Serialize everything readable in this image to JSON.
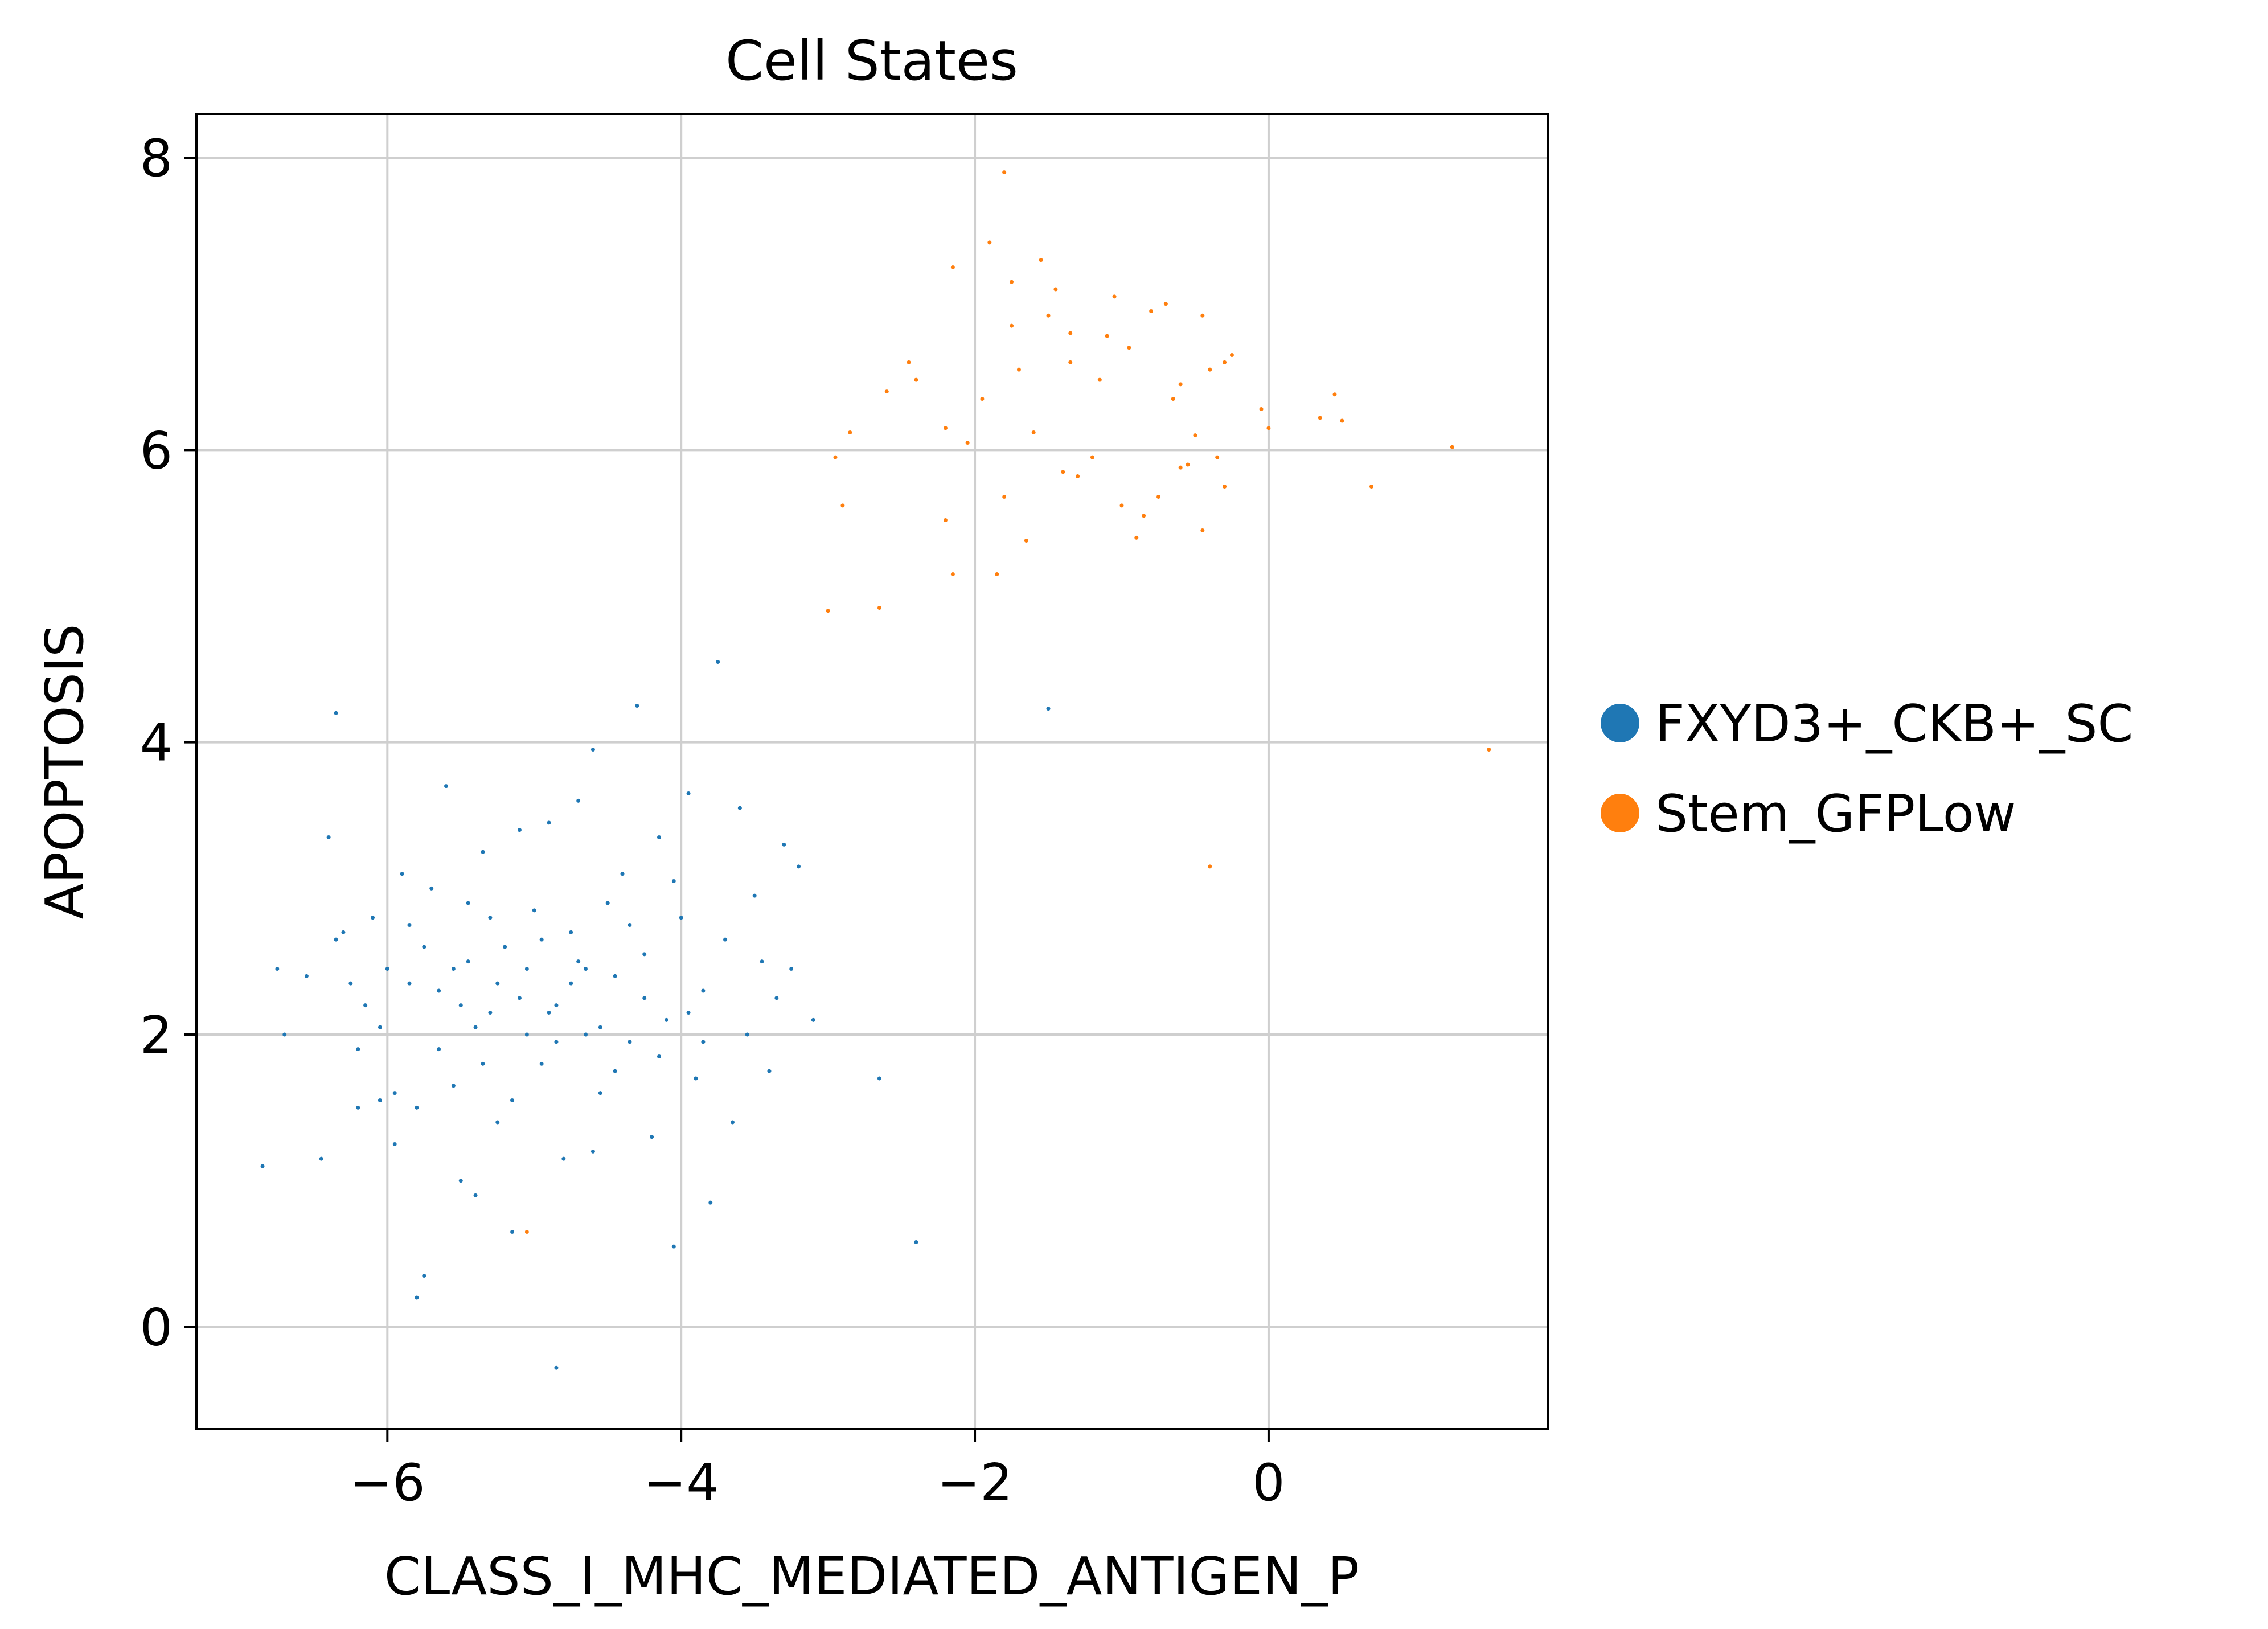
{
  "chart_data": {
    "type": "scatter",
    "title": "Cell States",
    "xlabel": "CLASS_I_MHC_MEDIATED_ANTIGEN_P",
    "ylabel": "APOPTOSIS",
    "xlim": [
      -7.3,
      1.9
    ],
    "ylim": [
      -0.7,
      8.3
    ],
    "xticks": [
      -6,
      -4,
      -2,
      0
    ],
    "xtick_labels": [
      "−6",
      "−4",
      "−2",
      "0"
    ],
    "yticks": [
      0,
      2,
      4,
      6,
      8
    ],
    "ytick_labels": [
      "0",
      "2",
      "4",
      "6",
      "8"
    ],
    "grid": true,
    "legend_position": "right",
    "series": [
      {
        "name": "FXYD3+_CKB+_SC",
        "color": "#1f77b4",
        "points": [
          [
            -6.85,
            1.1
          ],
          [
            -6.75,
            2.45
          ],
          [
            -6.7,
            2.0
          ],
          [
            -6.35,
            4.2
          ],
          [
            -6.4,
            3.35
          ],
          [
            -6.3,
            2.7
          ],
          [
            -6.25,
            2.35
          ],
          [
            -6.2,
            1.5
          ],
          [
            -6.15,
            2.2
          ],
          [
            -6.1,
            2.8
          ],
          [
            -6.05,
            1.55
          ],
          [
            -6.0,
            2.45
          ],
          [
            -5.95,
            1.6
          ],
          [
            -5.9,
            3.1
          ],
          [
            -5.85,
            2.75
          ],
          [
            -5.8,
            1.5
          ],
          [
            -5.75,
            0.35
          ],
          [
            -5.7,
            3.0
          ],
          [
            -5.65,
            2.3
          ],
          [
            -5.6,
            3.7
          ],
          [
            -5.55,
            2.45
          ],
          [
            -5.5,
            1.0
          ],
          [
            -5.45,
            2.9
          ],
          [
            -5.4,
            0.9
          ],
          [
            -5.35,
            3.25
          ],
          [
            -5.3,
            2.15
          ],
          [
            -5.25,
            1.4
          ],
          [
            -5.2,
            2.6
          ],
          [
            -5.15,
            0.65
          ],
          [
            -5.1,
            3.4
          ],
          [
            -5.05,
            2.0
          ],
          [
            -5.0,
            2.85
          ],
          [
            -4.95,
            1.8
          ],
          [
            -4.9,
            3.45
          ],
          [
            -4.85,
            2.2
          ],
          [
            -4.8,
            1.15
          ],
          [
            -4.75,
            2.7
          ],
          [
            -4.7,
            3.6
          ],
          [
            -4.65,
            2.0
          ],
          [
            -4.6,
            3.95
          ],
          [
            -4.55,
            1.6
          ],
          [
            -4.5,
            2.9
          ],
          [
            -4.45,
            2.4
          ],
          [
            -4.4,
            3.1
          ],
          [
            -4.35,
            1.95
          ],
          [
            -4.3,
            4.25
          ],
          [
            -4.25,
            2.55
          ],
          [
            -4.2,
            1.3
          ],
          [
            -4.15,
            3.35
          ],
          [
            -4.1,
            2.1
          ],
          [
            -4.05,
            0.55
          ],
          [
            -4.0,
            2.8
          ],
          [
            -3.95,
            3.65
          ],
          [
            -3.9,
            1.7
          ],
          [
            -3.85,
            2.3
          ],
          [
            -3.8,
            0.85
          ],
          [
            -3.75,
            4.55
          ],
          [
            -3.7,
            2.65
          ],
          [
            -3.65,
            1.4
          ],
          [
            -3.6,
            3.55
          ],
          [
            -3.55,
            2.0
          ],
          [
            -3.5,
            2.95
          ],
          [
            -3.45,
            2.5
          ],
          [
            -3.4,
            1.75
          ],
          [
            -3.35,
            2.25
          ],
          [
            -3.3,
            3.3
          ],
          [
            -3.25,
            2.45
          ],
          [
            -3.2,
            3.15
          ],
          [
            -3.1,
            2.1
          ],
          [
            -2.65,
            1.7
          ],
          [
            -2.4,
            0.58
          ],
          [
            -1.5,
            4.23
          ],
          [
            -6.55,
            2.4
          ],
          [
            -6.45,
            1.15
          ],
          [
            -6.35,
            2.65
          ],
          [
            -6.2,
            1.9
          ],
          [
            -6.05,
            2.05
          ],
          [
            -5.95,
            1.25
          ],
          [
            -5.85,
            2.35
          ],
          [
            -5.75,
            2.6
          ],
          [
            -5.65,
            1.9
          ],
          [
            -5.55,
            1.65
          ],
          [
            -5.45,
            2.5
          ],
          [
            -5.35,
            1.8
          ],
          [
            -5.25,
            2.35
          ],
          [
            -5.15,
            1.55
          ],
          [
            -5.05,
            2.45
          ],
          [
            -4.95,
            2.65
          ],
          [
            -4.85,
            1.95
          ],
          [
            -4.75,
            2.35
          ],
          [
            -4.65,
            2.45
          ],
          [
            -4.55,
            2.05
          ],
          [
            -4.45,
            1.75
          ],
          [
            -4.35,
            2.75
          ],
          [
            -4.25,
            2.25
          ],
          [
            -4.15,
            1.85
          ],
          [
            -4.05,
            3.05
          ],
          [
            -3.95,
            2.15
          ],
          [
            -3.85,
            1.95
          ],
          [
            -5.8,
            0.2
          ],
          [
            -4.85,
            -0.28
          ],
          [
            -5.5,
            2.2
          ],
          [
            -5.3,
            2.8
          ],
          [
            -4.7,
            2.5
          ],
          [
            -4.9,
            2.15
          ],
          [
            -5.1,
            2.25
          ],
          [
            -4.6,
            1.2
          ],
          [
            -5.4,
            2.05
          ]
        ]
      },
      {
        "name": "Stem_GFPLow",
        "color": "#ff7f0e",
        "points": [
          [
            -3.0,
            4.9
          ],
          [
            -2.65,
            4.92
          ],
          [
            -2.95,
            5.95
          ],
          [
            -2.9,
            5.62
          ],
          [
            -2.85,
            6.12
          ],
          [
            -2.6,
            6.4
          ],
          [
            -2.45,
            6.6
          ],
          [
            -2.4,
            6.48
          ],
          [
            -2.2,
            6.15
          ],
          [
            -2.2,
            5.52
          ],
          [
            -2.15,
            5.15
          ],
          [
            -2.15,
            7.25
          ],
          [
            -2.05,
            6.05
          ],
          [
            -1.95,
            6.35
          ],
          [
            -1.9,
            7.42
          ],
          [
            -1.85,
            5.15
          ],
          [
            -1.8,
            7.9
          ],
          [
            -1.8,
            5.68
          ],
          [
            -1.75,
            7.15
          ],
          [
            -1.75,
            6.85
          ],
          [
            -1.7,
            6.55
          ],
          [
            -1.6,
            6.12
          ],
          [
            -1.55,
            7.3
          ],
          [
            -1.5,
            6.92
          ],
          [
            -1.45,
            7.1
          ],
          [
            -1.4,
            5.85
          ],
          [
            -1.35,
            6.8
          ],
          [
            -1.35,
            6.6
          ],
          [
            -1.3,
            5.82
          ],
          [
            -1.2,
            5.95
          ],
          [
            -1.15,
            6.48
          ],
          [
            -1.1,
            6.78
          ],
          [
            -1.05,
            7.05
          ],
          [
            -1.0,
            5.62
          ],
          [
            -0.95,
            6.7
          ],
          [
            -0.9,
            5.4
          ],
          [
            -0.85,
            5.55
          ],
          [
            -0.8,
            6.95
          ],
          [
            -0.75,
            5.68
          ],
          [
            -0.7,
            7.0
          ],
          [
            -0.65,
            6.35
          ],
          [
            -0.6,
            6.45
          ],
          [
            -0.55,
            5.9
          ],
          [
            -0.5,
            6.1
          ],
          [
            -0.45,
            6.92
          ],
          [
            -0.45,
            5.45
          ],
          [
            -0.4,
            6.55
          ],
          [
            -0.35,
            5.95
          ],
          [
            -0.3,
            6.6
          ],
          [
            -0.25,
            6.65
          ],
          [
            -0.05,
            6.28
          ],
          [
            0.35,
            6.22
          ],
          [
            0.45,
            6.38
          ],
          [
            0.5,
            6.2
          ],
          [
            0.7,
            5.75
          ],
          [
            1.25,
            6.02
          ],
          [
            1.5,
            3.95
          ],
          [
            -0.4,
            3.15
          ],
          [
            -5.05,
            0.65
          ],
          [
            0.0,
            6.15
          ],
          [
            -0.6,
            5.88
          ],
          [
            -1.65,
            5.38
          ],
          [
            -0.3,
            5.75
          ]
        ]
      }
    ]
  }
}
